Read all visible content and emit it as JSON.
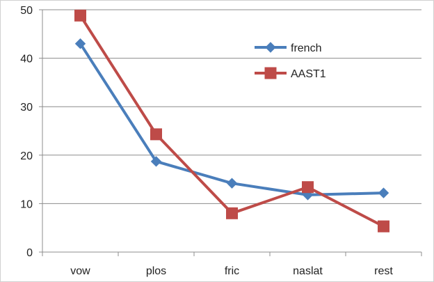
{
  "chart_data": {
    "type": "line",
    "title": "",
    "xlabel": "",
    "ylabel": "",
    "categories": [
      "vow",
      "plos",
      "fric",
      "naslat",
      "rest"
    ],
    "ylim": [
      0,
      50
    ],
    "y_ticks": [
      0,
      10,
      20,
      30,
      40,
      50
    ],
    "grid": true,
    "legend_position": "top-right",
    "series": [
      {
        "name": "french",
        "color": "#4a7ebb",
        "marker": "diamond",
        "values": [
          43,
          18.7,
          14.2,
          11.8,
          12.2
        ]
      },
      {
        "name": "AAST1",
        "color": "#be4b48",
        "marker": "square",
        "values": [
          48.8,
          24.3,
          8.0,
          13.4,
          5.3
        ]
      }
    ]
  }
}
